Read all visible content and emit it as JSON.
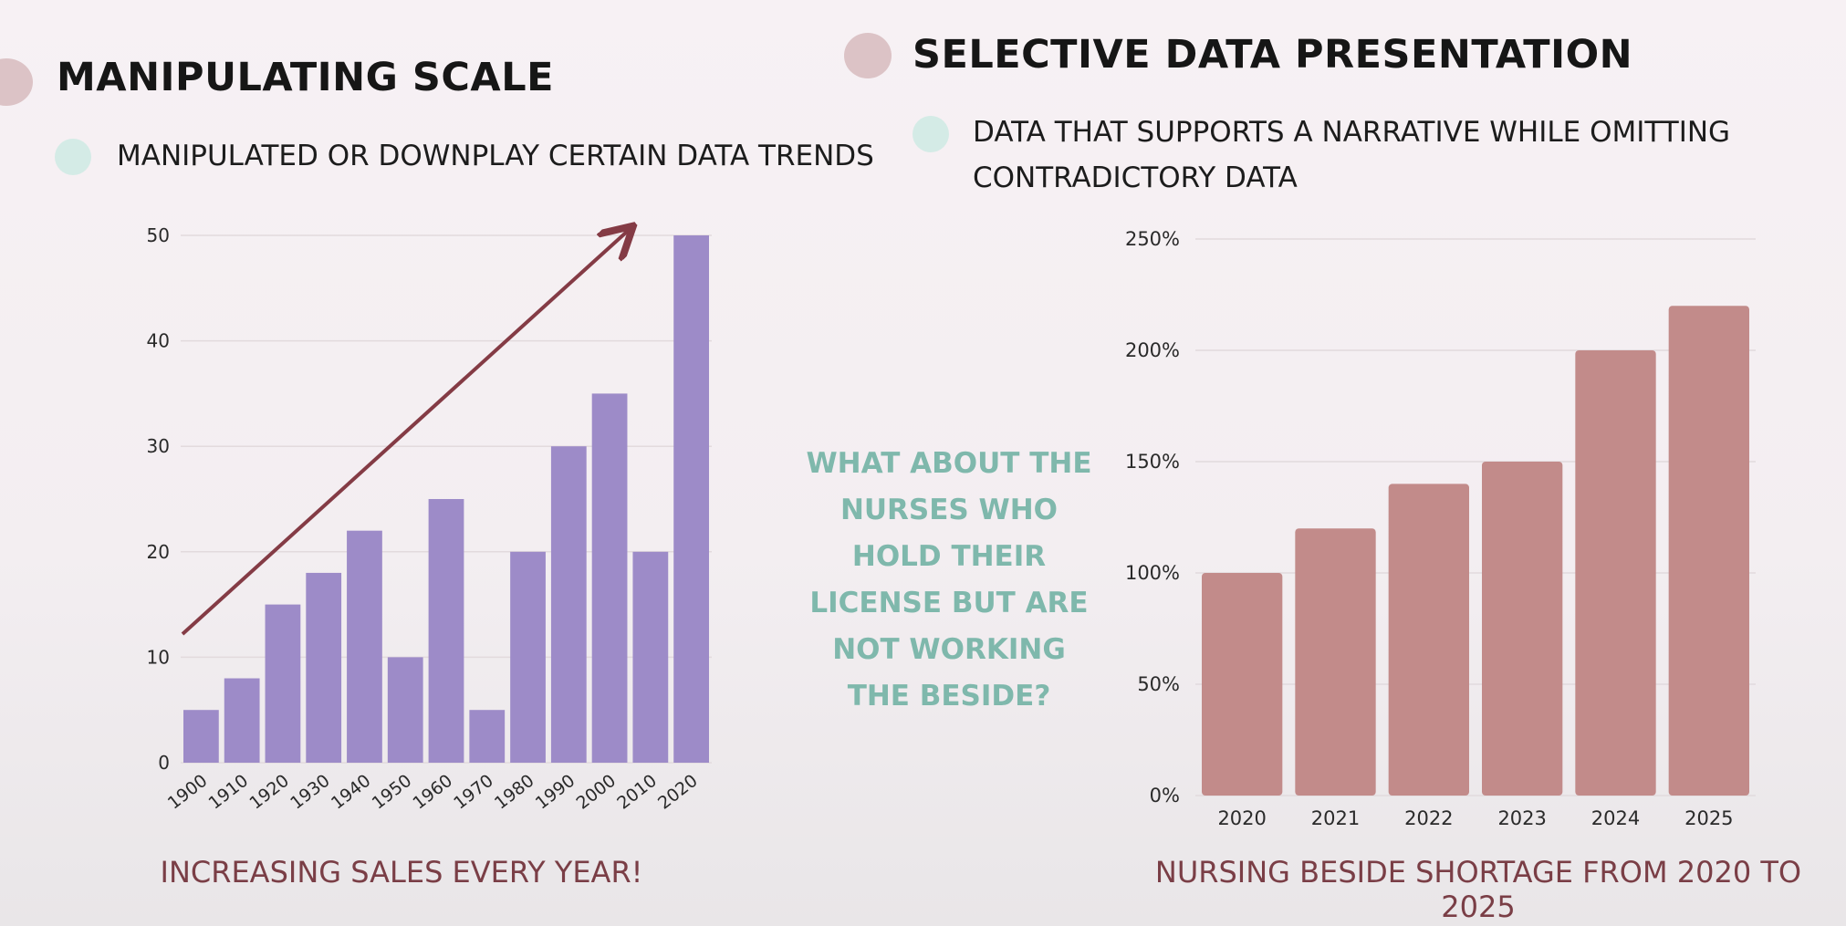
{
  "colors": {
    "accent_pink": "#dcc3c6",
    "accent_mint": "#d4ebe6",
    "bar_purple": "#9d8bc8",
    "bar_rose": "#c28b8a",
    "arrow": "#843b45",
    "caption": "#7a3e46",
    "question": "#7fb8ac"
  },
  "left": {
    "heading": "MANIPULATING SCALE",
    "bullet": "MANIPULATED OR DOWNPLAY CERTAIN DATA TRENDS",
    "caption": "INCREASING SALES EVERY YEAR!"
  },
  "right": {
    "heading": "SELECTIVE DATA PRESENTATION",
    "bullet_line1": "DATA THAT SUPPORTS A NARRATIVE WHILE OMITTING",
    "bullet_line2": "CONTRADICTORY DATA",
    "caption": "NURSING BESIDE SHORTAGE FROM 2020 TO 2025"
  },
  "question": {
    "lines": [
      "WHAT ABOUT THE",
      "NURSES WHO",
      "HOLD THEIR",
      "LICENSE BUT ARE",
      "NOT WORKING",
      "THE BESIDE?"
    ]
  },
  "chart_data": [
    {
      "type": "bar",
      "categories": [
        "1900",
        "1910",
        "1920",
        "1930",
        "1940",
        "1950",
        "1960",
        "1970",
        "1980",
        "1990",
        "2000",
        "2010",
        "2020"
      ],
      "values": [
        5,
        8,
        15,
        18,
        22,
        10,
        25,
        5,
        20,
        30,
        35,
        20,
        50
      ],
      "ylim": [
        0,
        50
      ],
      "yticks": [
        "0",
        "10",
        "20",
        "30",
        "40",
        "50"
      ],
      "grid": true,
      "annotation": "upward trend arrow",
      "color": "#9d8bc8"
    },
    {
      "type": "bar",
      "categories": [
        "2020",
        "2021",
        "2022",
        "2023",
        "2024",
        "2025"
      ],
      "values": [
        100,
        120,
        140,
        150,
        200,
        220
      ],
      "ylim": [
        0,
        250
      ],
      "yticks": [
        "0%",
        "50%",
        "100%",
        "150%",
        "200%",
        "250%"
      ],
      "grid": true,
      "color": "#c28b8a"
    }
  ]
}
